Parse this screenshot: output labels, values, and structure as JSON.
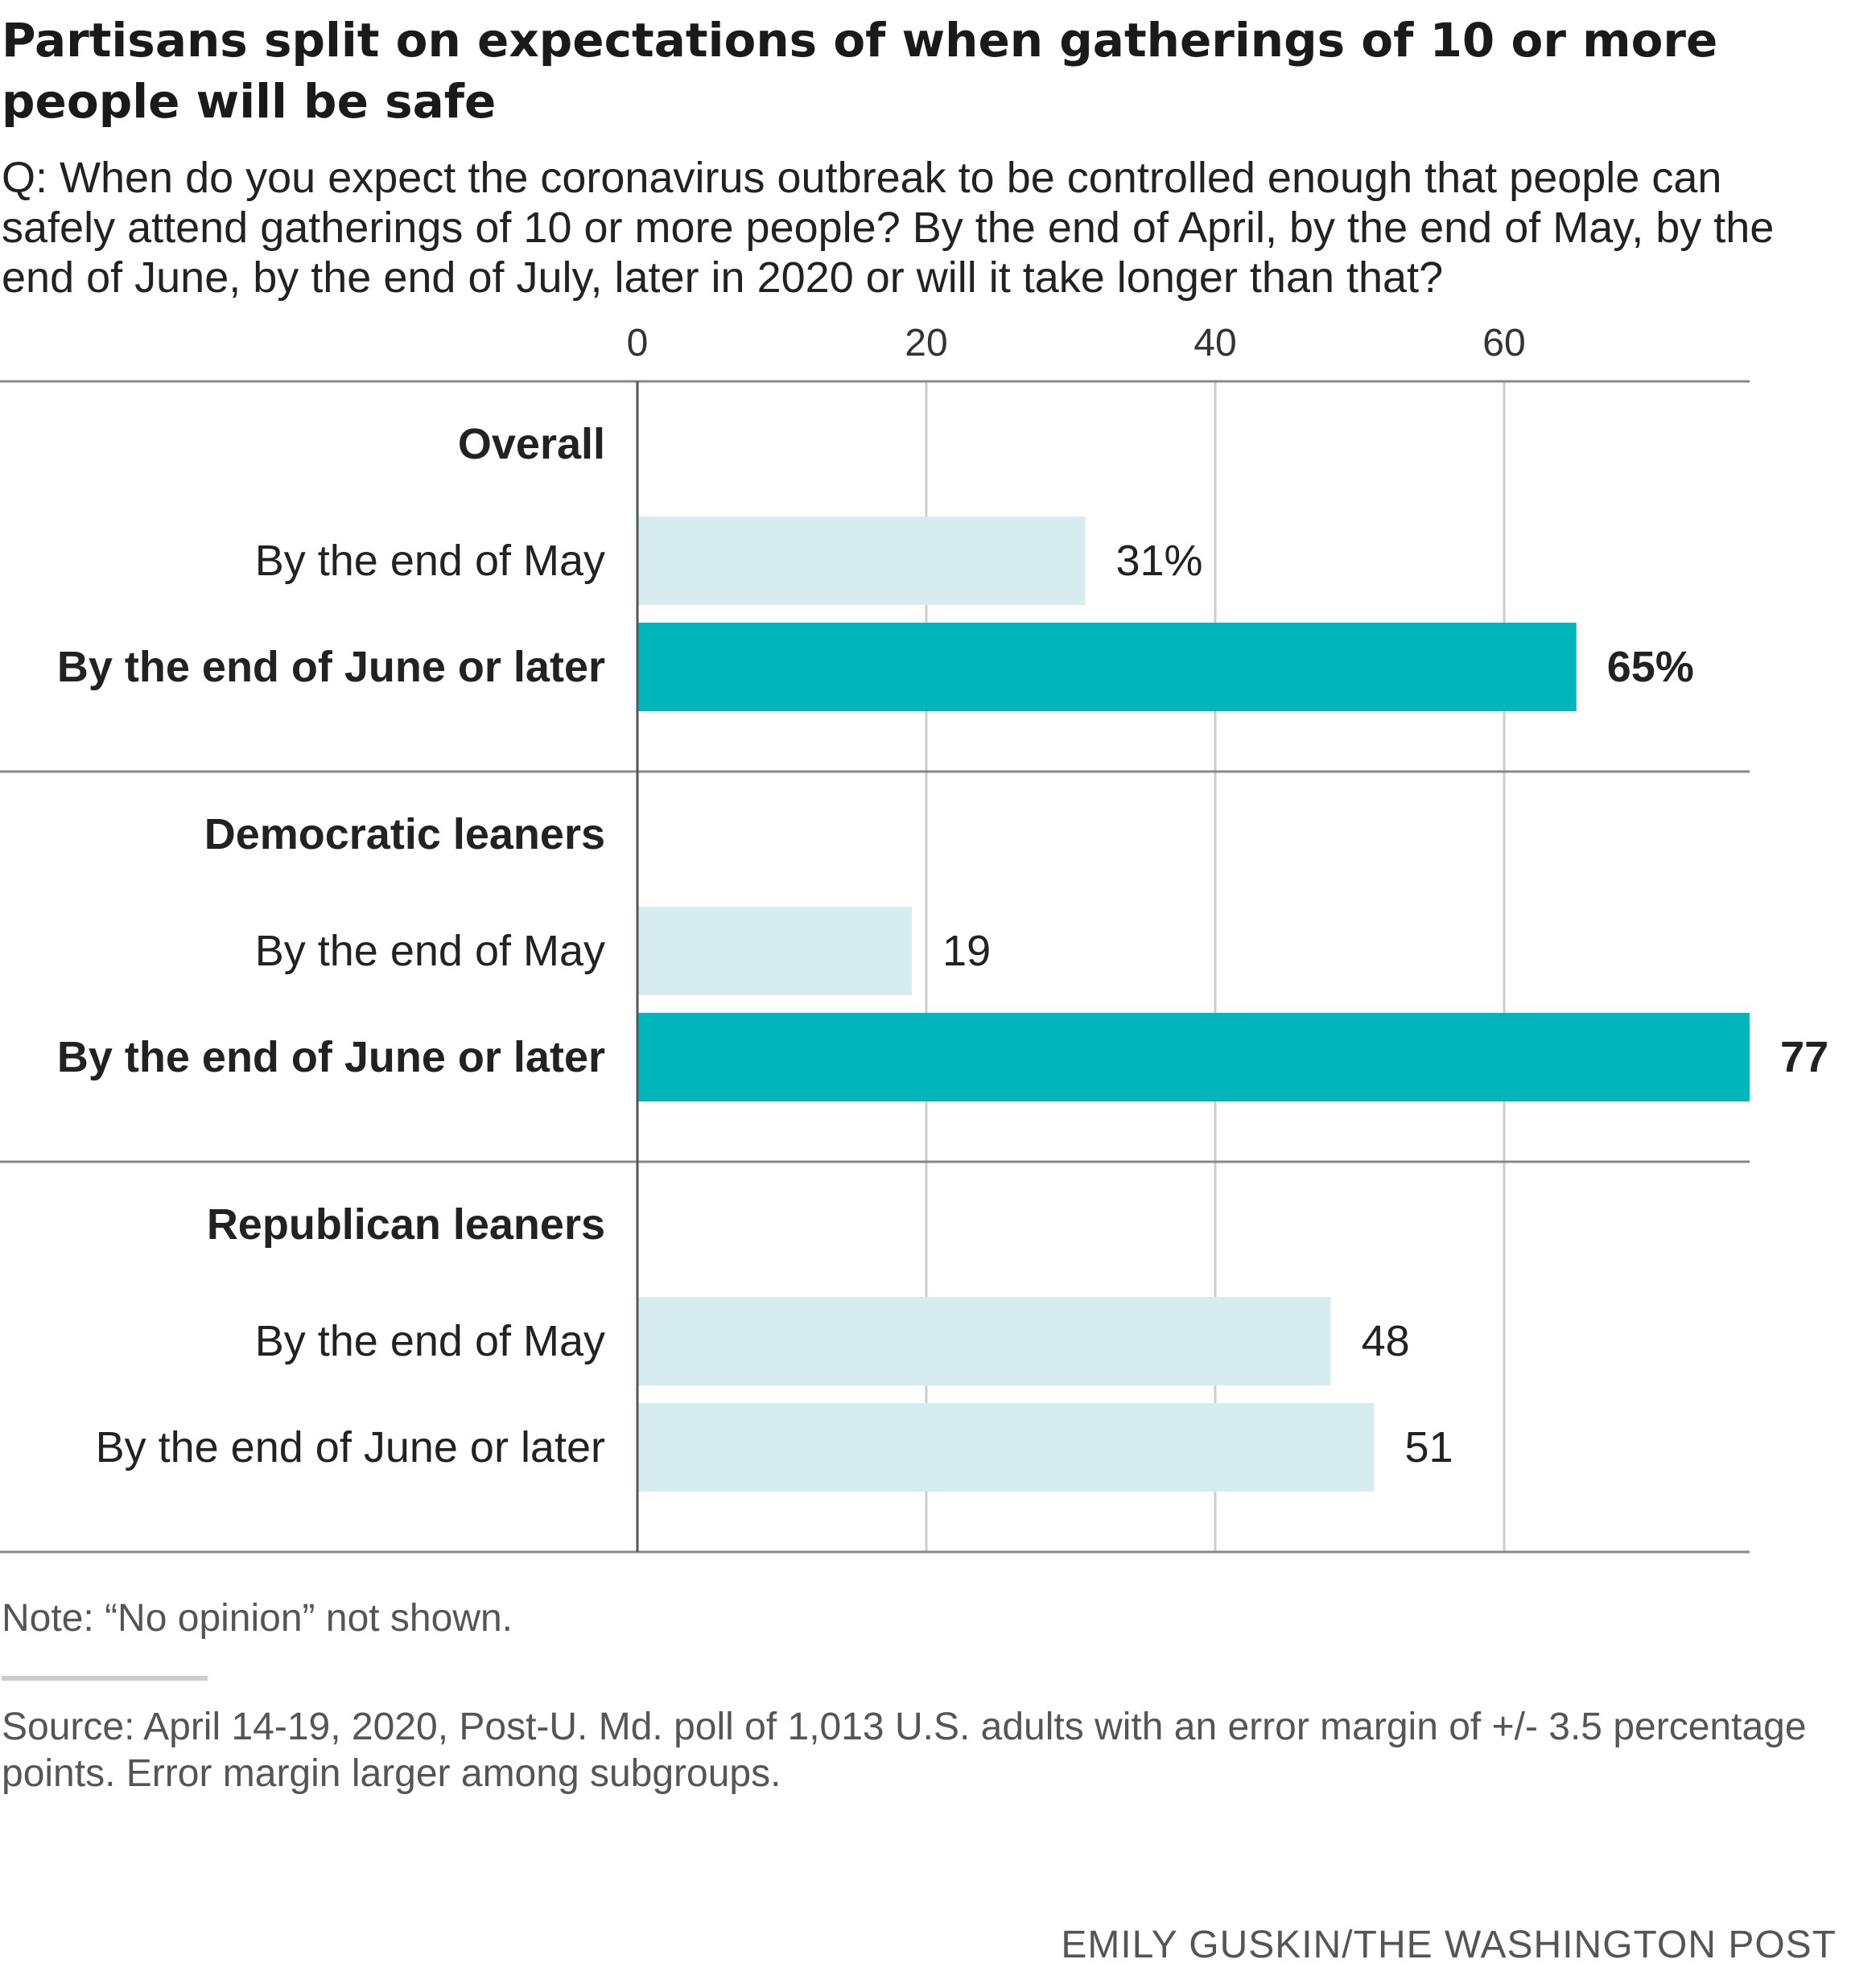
{
  "title": "Partisans split on expectations of when gatherings of 10 or more people will be safe",
  "question": "Q: When do you expect the coronavirus outbreak to be controlled enough that people can safely attend gatherings of 10 or more people? By the end of April, by the end of May, by the end of June, by the end of July, later in 2020 or will it take longer than that?",
  "note": "Note: “No opinion” not shown.",
  "source": "Source: April 14-19, 2020, Post-U. Md. poll of 1,013 U.S. adults with an error margin of +/- 3.5 percentage points. Error margin larger among subgroups.",
  "credit": "EMILY GUSKIN/THE WASHINGTON POST",
  "colors": {
    "highlight": "#00b5bb",
    "muted": "#d6ecee",
    "grid": "#cccccc",
    "rule": "#888888",
    "axis": "#555555"
  },
  "chart_data": {
    "type": "bar",
    "orientation": "horizontal",
    "unit": "%",
    "xlim": [
      0,
      77
    ],
    "xticks": [
      0,
      20,
      40,
      60
    ],
    "grid": true,
    "groups": [
      {
        "name": "Overall",
        "bars": [
          {
            "label": "By the end of May",
            "value": 31,
            "display": "31%",
            "highlight": false
          },
          {
            "label": "By the end of June or later",
            "value": 65,
            "display": "65%",
            "highlight": true
          }
        ]
      },
      {
        "name": "Democratic leaners",
        "bars": [
          {
            "label": "By the end of May",
            "value": 19,
            "display": "19",
            "highlight": false
          },
          {
            "label": "By the end of June or later",
            "value": 77,
            "display": "77",
            "highlight": true
          }
        ]
      },
      {
        "name": "Republican leaners",
        "bars": [
          {
            "label": "By the end of May",
            "value": 48,
            "display": "48",
            "highlight": false
          },
          {
            "label": "By the end of June or later",
            "value": 51,
            "display": "51",
            "highlight": false
          }
        ]
      }
    ]
  }
}
